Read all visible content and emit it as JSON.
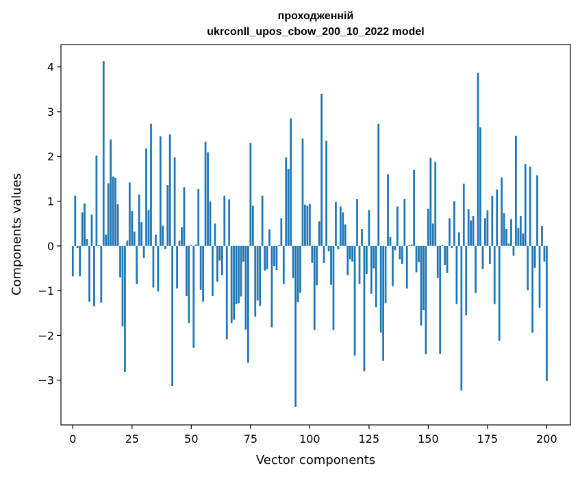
{
  "chart_data": {
    "type": "bar",
    "title_line1": "проходженній",
    "title_line2": "ukrconll_upos_cbow_200_10_2022 model",
    "xlabel": "Vector components",
    "ylabel": "Components values",
    "xlim": [
      -5,
      210
    ],
    "ylim": [
      -4.0,
      4.5
    ],
    "xticks": [
      0,
      25,
      50,
      75,
      100,
      125,
      150,
      175,
      200
    ],
    "xtick_labels": [
      "0",
      "25",
      "50",
      "75",
      "100",
      "125",
      "150",
      "175",
      "200"
    ],
    "yticks": [
      -3,
      -2,
      -1,
      0,
      1,
      2,
      3,
      4
    ],
    "ytick_labels": [
      "−3",
      "−2",
      "−1",
      "0",
      "1",
      "2",
      "3",
      "4"
    ],
    "bar_color": "#1f77b4",
    "grid": false,
    "values": [
      -0.68,
      1.12,
      -0.05,
      -0.68,
      0.75,
      0.95,
      0.15,
      -1.25,
      0.7,
      -1.35,
      2.02,
      0.02,
      -1.27,
      4.13,
      0.25,
      1.4,
      2.38,
      1.55,
      1.52,
      0.93,
      -0.7,
      -1.8,
      -2.82,
      0.12,
      1.42,
      0.78,
      0.32,
      -0.85,
      1.15,
      0.53,
      -0.27,
      2.18,
      0.8,
      2.73,
      -0.93,
      0.25,
      -1.02,
      2.45,
      0.45,
      -0.07,
      1.36,
      2.49,
      -3.13,
      1.98,
      -0.95,
      0.12,
      0.42,
      1.31,
      -1.12,
      -1.72,
      0.02,
      -2.28,
      0.03,
      1.27,
      -0.98,
      -1.25,
      2.33,
      2.09,
      0.99,
      -1.12,
      0.5,
      -0.8,
      -0.33,
      -0.65,
      1.12,
      -2.09,
      1.04,
      -1.72,
      -1.65,
      -1.3,
      -1.28,
      -1.13,
      -0.35,
      -1.87,
      -2.61,
      2.3,
      0.9,
      -1.58,
      -1.22,
      -1.34,
      1.12,
      -0.55,
      -0.52,
      0.37,
      -1.82,
      -0.45,
      -0.54,
      0.02,
      0.62,
      -0.85,
      1.98,
      1.72,
      2.85,
      -0.72,
      -3.6,
      -1.26,
      -1.05,
      2.4,
      0.92,
      0.9,
      0.94,
      -0.38,
      -1.88,
      -0.88,
      0.55,
      3.4,
      -0.38,
      2.35,
      -0.12,
      -0.87,
      -1.88,
      0.98,
      -0.07,
      0.88,
      0.75,
      0.48,
      -0.65,
      -0.3,
      -0.35,
      -2.45,
      1.05,
      -0.85,
      0.38,
      -2.8,
      -0.63,
      0.8,
      -1.07,
      -0.5,
      -1.37,
      2.73,
      -1.94,
      -2.57,
      -1.28,
      1.6,
      0.2,
      -0.9,
      -0.1,
      0.88,
      -0.3,
      -0.4,
      1.05,
      -0.95,
      0.02,
      0.03,
      1.7,
      -0.59,
      -0.36,
      -1.78,
      -1.43,
      -2.42,
      0.83,
      1.97,
      0.5,
      1.88,
      -0.72,
      -2.41,
      0.02,
      -0.43,
      -0.6,
      0.62,
      -0.05,
      1.0,
      -1.3,
      0.3,
      -3.23,
      1.39,
      -1.55,
      0.82,
      0.57,
      0.67,
      -1.05,
      3.87,
      2.65,
      -0.52,
      0.62,
      0.8,
      -0.4,
      1.12,
      -1.3,
      1.26,
      -2.12,
      1.53,
      0.73,
      0.38,
      0.05,
      0.6,
      -0.22,
      2.46,
      0.4,
      0.67,
      0.28,
      1.83,
      -0.99,
      1.77,
      -1.94,
      -0.49,
      1.58,
      -1.38,
      0.44,
      -0.35,
      -3.02
    ]
  }
}
